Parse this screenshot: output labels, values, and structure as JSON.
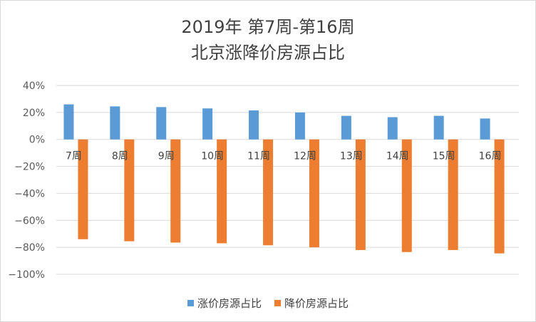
{
  "chart_data": {
    "type": "bar",
    "title": "2019年 第7周-第16周",
    "subtitle": "北京涨降价房源占比",
    "categories": [
      "7周",
      "8周",
      "9周",
      "10周",
      "11周",
      "12周",
      "13周",
      "14周",
      "15周",
      "16周"
    ],
    "series": [
      {
        "name": "涨价房源占比",
        "color": "#5b9bd5",
        "values": [
          26,
          24.5,
          24,
          23,
          21.5,
          20,
          17.5,
          16.5,
          17.5,
          15.5
        ]
      },
      {
        "name": "降价房源占比",
        "color": "#ed7d31",
        "values": [
          -74,
          -75.5,
          -76.5,
          -77,
          -78.5,
          -80,
          -82,
          -83.5,
          -82,
          -84.5
        ]
      }
    ],
    "ylim": [
      -100,
      40
    ],
    "yticks": [
      40,
      20,
      0,
      -20,
      -40,
      -60,
      -80,
      -100
    ],
    "ytick_labels": [
      "40%",
      "20%",
      "0%",
      "−20%",
      "−40%",
      "−60%",
      "−80%",
      "−100%"
    ],
    "grid": true,
    "legend": "bottom"
  }
}
